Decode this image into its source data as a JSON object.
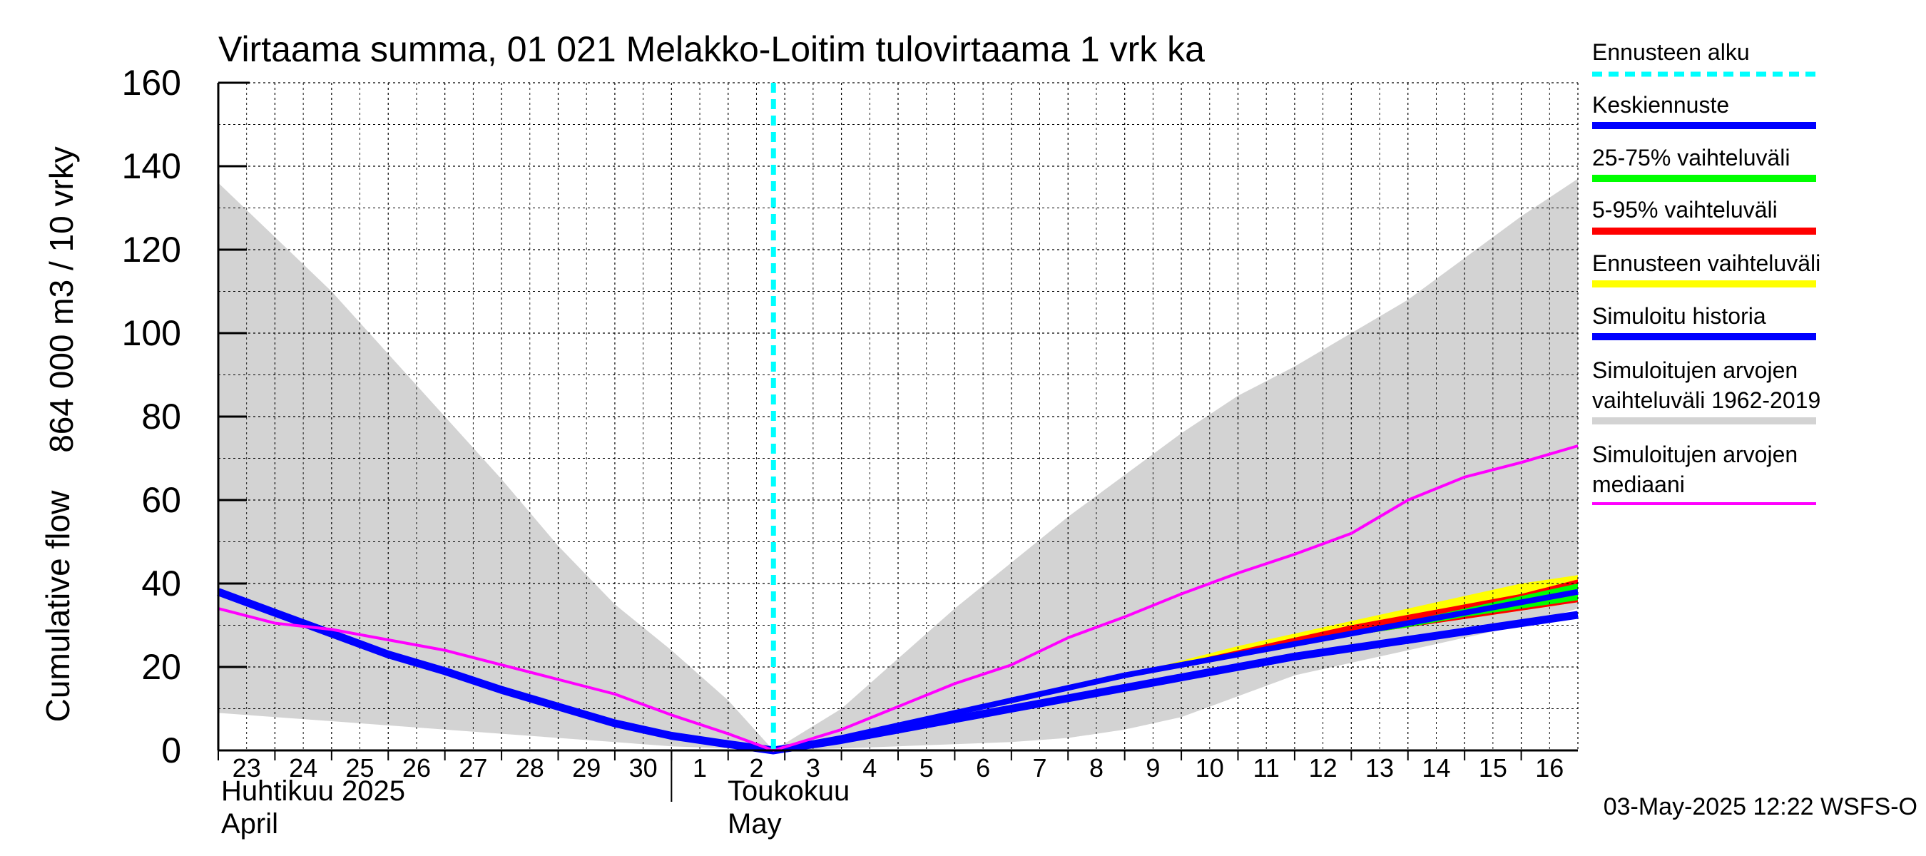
{
  "chart_data": {
    "type": "area",
    "title": "Virtaama summa, 01 021 Melakko-Loitim tulovirtaama 1 vrk ka",
    "ylabel_fi": "864 000 m3 / 10 vrky",
    "ylabel_en": "Cumulative flow",
    "ylim": [
      0,
      160
    ],
    "yticks": [
      0,
      20,
      40,
      60,
      80,
      100,
      120,
      140,
      160
    ],
    "x_day_ticks": [
      {
        "d": 0,
        "label": "23"
      },
      {
        "d": 1,
        "label": "24"
      },
      {
        "d": 2,
        "label": "25"
      },
      {
        "d": 3,
        "label": "26"
      },
      {
        "d": 4,
        "label": "27"
      },
      {
        "d": 5,
        "label": "28"
      },
      {
        "d": 6,
        "label": "29"
      },
      {
        "d": 7,
        "label": "30"
      },
      {
        "d": 8,
        "label": "1"
      },
      {
        "d": 9,
        "label": "2"
      },
      {
        "d": 10,
        "label": "3"
      },
      {
        "d": 11,
        "label": "4"
      },
      {
        "d": 12,
        "label": "5"
      },
      {
        "d": 13,
        "label": "6"
      },
      {
        "d": 14,
        "label": "7"
      },
      {
        "d": 15,
        "label": "8"
      },
      {
        "d": 16,
        "label": "9"
      },
      {
        "d": 17,
        "label": "10"
      },
      {
        "d": 18,
        "label": "11"
      },
      {
        "d": 19,
        "label": "12"
      },
      {
        "d": 20,
        "label": "13"
      },
      {
        "d": 21,
        "label": "14"
      },
      {
        "d": 22,
        "label": "15"
      },
      {
        "d": 23,
        "label": "16"
      }
    ],
    "x_range_days": [
      0,
      24
    ],
    "month_labels": {
      "april_fi": "Huhtikuu  2025",
      "april_en": "April",
      "may_fi": "Toukokuu",
      "may_en": "May"
    },
    "forecast_start_day": 9.8,
    "x_days": [
      0,
      1,
      2,
      3,
      4,
      5,
      6,
      7,
      8,
      9,
      9.8,
      11,
      12,
      13,
      14,
      15,
      16,
      17,
      18,
      19,
      20,
      21,
      22,
      23,
      24
    ],
    "series": {
      "hist_range_upper": [
        136,
        123,
        110,
        95,
        80,
        65,
        49,
        35,
        24,
        12,
        0,
        10,
        22,
        34,
        45,
        56,
        66,
        76,
        85,
        92,
        100,
        108,
        118,
        128,
        137
      ],
      "hist_range_lower": [
        9,
        8,
        7,
        6,
        5,
        4,
        3,
        2,
        1,
        0.5,
        0,
        0.5,
        1,
        1.5,
        2,
        3,
        5,
        8,
        13,
        18,
        21,
        24,
        27,
        30,
        34
      ],
      "simuloitu_historia": [
        38,
        33,
        28,
        23,
        19,
        14.5,
        10.5,
        6.5,
        3.5,
        1.5,
        0,
        2.5,
        5,
        7.5,
        10,
        12.5,
        15,
        17.5,
        20,
        22.5,
        24.5,
        26.5,
        28.5,
        30.5,
        32.5
      ],
      "keskiennuste": [
        null,
        null,
        null,
        null,
        null,
        null,
        null,
        null,
        null,
        null,
        0,
        3,
        6,
        9,
        12,
        15,
        18,
        20.5,
        23,
        25.5,
        28,
        30.5,
        33,
        35.5,
        38
      ],
      "range_5_95_upper": [
        null,
        null,
        null,
        null,
        null,
        null,
        null,
        null,
        null,
        null,
        0,
        3,
        6,
        9,
        12,
        15,
        18,
        21,
        24,
        27,
        30,
        32.5,
        35,
        37.5,
        41
      ],
      "range_5_95_lower": [
        null,
        null,
        null,
        null,
        null,
        null,
        null,
        null,
        null,
        null,
        0,
        3,
        6,
        9,
        12,
        15,
        18,
        20.5,
        23,
        25.5,
        27.5,
        29.5,
        31.5,
        33.5,
        35.5
      ],
      "range_25_75_upper": [
        null,
        null,
        null,
        null,
        null,
        null,
        null,
        null,
        null,
        null,
        0,
        3,
        6,
        9,
        12,
        15,
        18,
        20.5,
        23.5,
        26,
        28.5,
        31,
        34,
        37,
        40
      ],
      "range_25_75_lower": [
        null,
        null,
        null,
        null,
        null,
        null,
        null,
        null,
        null,
        null,
        0,
        3,
        6,
        9,
        12,
        15,
        18,
        20.5,
        23,
        25.5,
        27.5,
        29.5,
        32,
        34,
        36
      ],
      "ennusteen_vaihteluvali_upper": [
        null,
        null,
        null,
        null,
        null,
        null,
        null,
        null,
        null,
        null,
        0,
        3,
        6,
        9,
        12,
        15,
        18,
        21.5,
        25,
        28,
        31,
        34,
        37,
        40,
        42
      ],
      "ennusteen_vaihteluvali_lower": [
        null,
        null,
        null,
        null,
        null,
        null,
        null,
        null,
        null,
        null,
        0,
        3,
        6,
        9,
        12,
        15,
        18,
        20.5,
        23,
        25.5,
        27.5,
        29.5,
        31.5,
        33.5,
        35.5
      ],
      "mediaani": [
        34,
        30.5,
        29,
        26.5,
        24,
        20.5,
        17,
        13.5,
        8.5,
        4,
        0,
        5,
        10.5,
        16,
        20.5,
        27,
        32,
        37.5,
        42.5,
        47,
        52,
        60,
        65.5,
        69,
        73
      ]
    },
    "legend": [
      {
        "key": "alku",
        "label": "Ennusteen alku",
        "color": "#00ffff",
        "style": "dashed"
      },
      {
        "key": "keski",
        "label": "Keskiennuste",
        "color": "#0000ff"
      },
      {
        "key": "r2575",
        "label": "25-75% vaihteluväli",
        "color": "#00ff00"
      },
      {
        "key": "r595",
        "label": "5-95% vaihteluväli",
        "color": "#ff0000"
      },
      {
        "key": "ennv",
        "label": "Ennusteen vaihteluväli",
        "color": "#ffff00"
      },
      {
        "key": "simhist",
        "label": "Simuloitu historia",
        "color": "#0000ff"
      },
      {
        "key": "simrange",
        "label": "Simuloitujen arvojen",
        "label2": "vaihteluväli 1962-2019",
        "color": "#d3d3d3"
      },
      {
        "key": "median",
        "label": "Simuloitujen arvojen",
        "label2": "mediaani",
        "color": "#ff00ff"
      }
    ],
    "legend_placement": "right",
    "grid": true
  },
  "footer": {
    "timestamp": "03-May-2025 12:22 WSFS-O"
  }
}
